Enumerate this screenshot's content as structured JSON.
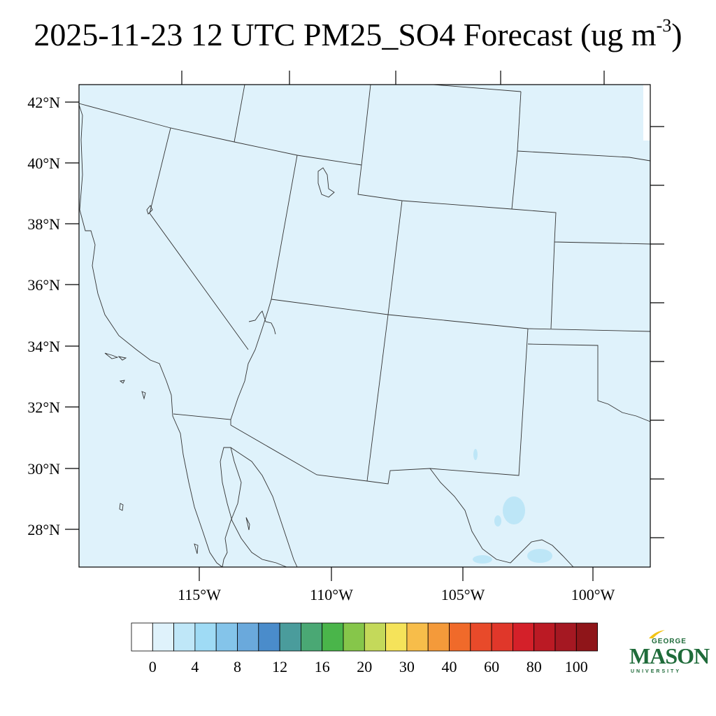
{
  "title": {
    "main": "2025-11-23 12 UTC PM25_SO4 Forecast (ug m",
    "superscript": "-3",
    "close": ")"
  },
  "map": {
    "fill_color": "#dff2fb",
    "lat_labels": [
      "42°N",
      "40°N",
      "38°N",
      "36°N",
      "34°N",
      "32°N",
      "30°N",
      "28°N"
    ],
    "lon_labels": [
      "115°W",
      "110°W",
      "105°W",
      "100°W"
    ],
    "water_color": "#bde6f7"
  },
  "colorbar": {
    "colors": [
      "#ffffff",
      "#dff2fb",
      "#bfe7f8",
      "#9fdbf5",
      "#84c4ea",
      "#6aa9dc",
      "#4a8ccb",
      "#4a9c9c",
      "#4aa874",
      "#4ab54a",
      "#86c64a",
      "#c4d95a",
      "#f5e35a",
      "#f7bd4a",
      "#f49a3a",
      "#f06a2a",
      "#e84a2a",
      "#e0372a",
      "#d42029",
      "#bb1a24",
      "#a51822",
      "#8f1519"
    ],
    "labels": [
      "0",
      "4",
      "8",
      "12",
      "16",
      "20",
      "30",
      "40",
      "60",
      "80",
      "100"
    ]
  },
  "logo": {
    "line1": "GEORGE",
    "line2": "MASON",
    "line3": "UNIVERSITY",
    "color": "#1f6b3a",
    "accent_color": "#f2c416"
  }
}
